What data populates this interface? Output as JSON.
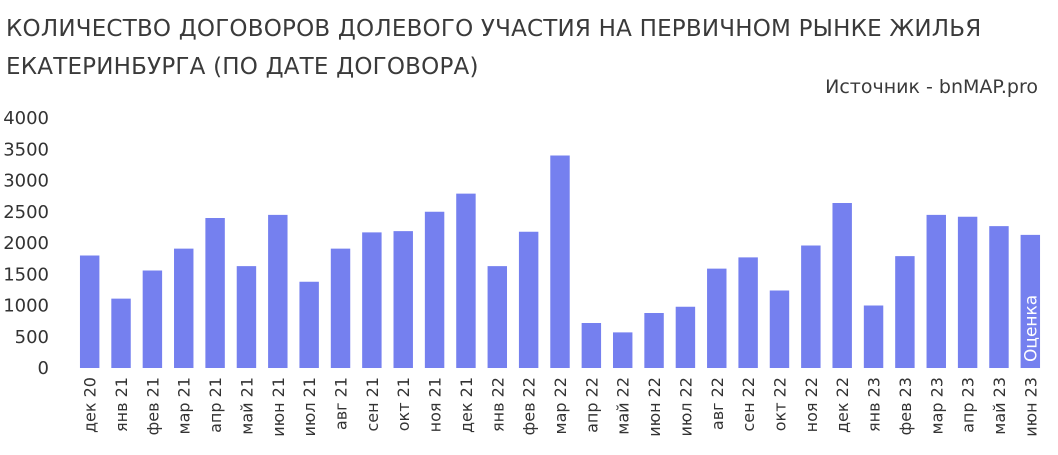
{
  "chart_data": {
    "type": "bar",
    "title": "КОЛИЧЕСТВО ДОГОВОРОВ ДОЛЕВОГО УЧАСТИЯ НА ПЕРВИЧНОМ РЫНКЕ ЖИЛЬЯ ЕКАТЕРИНБУРГА (ПО ДАТЕ ДОГОВОРА)",
    "source": "Источник - bnMAP.pro",
    "annotation": "Оценка",
    "xlabel": "",
    "ylabel": "",
    "ylim": [
      0,
      4000
    ],
    "yticks": [
      "0",
      "500",
      "1000",
      "1500",
      "2000",
      "2500",
      "3000",
      "3500",
      "4000"
    ],
    "grid": false,
    "categories": [
      "дек 20",
      "янв 21",
      "фев 21",
      "мар 21",
      "апр 21",
      "май 21",
      "июн 21",
      "июл 21",
      "авг 21",
      "сен 21",
      "окт 21",
      "ноя 21",
      "дек 21",
      "янв 22",
      "фев 22",
      "мар 22",
      "апр 22",
      "май 22",
      "июн 22",
      "июл 22",
      "авг 22",
      "сен 22",
      "окт 22",
      "ноя 22",
      "дек 22",
      "янв 23",
      "фев 23",
      "мар 23",
      "апр 23",
      "май 23",
      "июн 23"
    ],
    "values": [
      1800,
      1110,
      1560,
      1910,
      2400,
      1630,
      2450,
      1380,
      1910,
      2170,
      2190,
      2500,
      2790,
      1630,
      2180,
      3400,
      720,
      570,
      880,
      980,
      1590,
      1770,
      1240,
      1960,
      2640,
      1000,
      1790,
      2450,
      2420,
      2270,
      2130
    ],
    "colors": {
      "bar": "#7580ef",
      "text": "#333333",
      "annotation": "#ffffff"
    }
  }
}
